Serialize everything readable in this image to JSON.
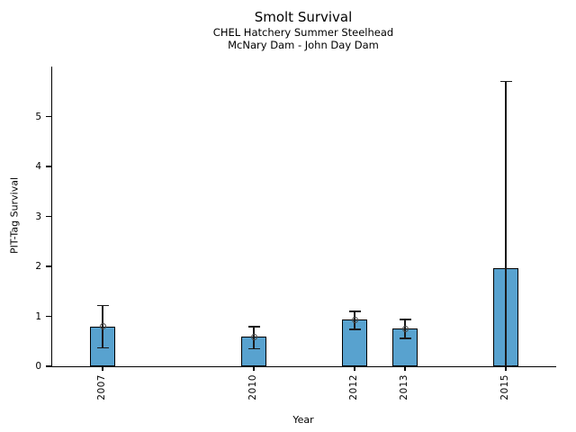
{
  "chart_data": {
    "type": "bar",
    "title": "Smolt Survival",
    "subtitle1": "CHEL Hatchery Summer Steelhead",
    "subtitle2": "McNary Dam - John Day Dam",
    "xlabel": "Year",
    "ylabel": "PIT-Tag Survival",
    "xlim": [
      2006,
      2016
    ],
    "ylim": [
      0,
      6
    ],
    "yticks": [
      0,
      1,
      2,
      3,
      4,
      5
    ],
    "grid": "off",
    "legend": "none",
    "categories": [
      "2007",
      "2010",
      "2012",
      "2013",
      "2015"
    ],
    "x": [
      2007,
      2010,
      2012,
      2013,
      2015
    ],
    "values": [
      0.8,
      0.59,
      0.93,
      0.75,
      1.97
    ],
    "error_low": [
      0.37,
      0.35,
      0.74,
      0.56,
      0.0
    ],
    "error_high": [
      1.22,
      0.79,
      1.1,
      0.94,
      5.7
    ],
    "point_marker": [
      true,
      true,
      true,
      true,
      false
    ],
    "bar_color": "#58A2CF",
    "bar_edge_color": "#000000",
    "error_color": "#1a1a1a",
    "marker_edge_color": "#4a4a4a",
    "bar_width_years": 0.5
  }
}
